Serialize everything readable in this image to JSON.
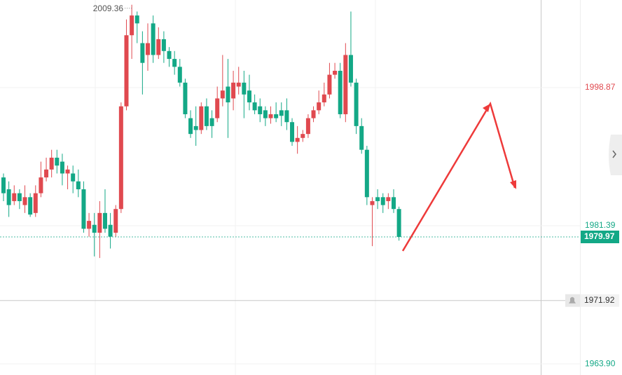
{
  "chart_data": {
    "type": "candlestick",
    "open": [
      1987.5,
      1986,
      1984.5,
      1985.5,
      1984,
      1985,
      1983,
      1985.5,
      1987.5,
      1988.5,
      1990,
      1989.5,
      1988,
      1988,
      1987,
      1986,
      1981,
      1981.5,
      1980.5,
      1983,
      1981.5,
      1980.5,
      1983.5,
      1996.5,
      2005.5,
      2008,
      2004.5,
      2003,
      2007,
      2003,
      2005,
      2003.5,
      2002.5,
      2001.5,
      1999.5,
      1995,
      1994,
      1993.5,
      1996.5,
      1995,
      1995,
      1997.5,
      1999,
      1997.5,
      1999,
      1999.5,
      1998.5,
      1997,
      1996.5,
      1996,
      1995,
      1995.5,
      1996,
      1996,
      1994.5,
      1992,
      1992.5,
      1993,
      1995,
      1996,
      1997,
      1998,
      2000.5,
      2001,
      1995.5,
      2003,
      1999.5,
      1994,
      1991,
      1984,
      1985,
      1985,
      1984.5,
      1985,
      1983.5
    ],
    "high": [
      1988,
      1987,
      1986.5,
      1986,
      1986.5,
      1985.5,
      1986.5,
      1989.5,
      1990,
      1991,
      1991,
      1990.5,
      1989,
      1989,
      1988.5,
      1987,
      1983,
      1983,
      1984.5,
      1986,
      1983,
      1984,
      1997,
      2007.5,
      2009.36,
      2008.5,
      2006,
      2007,
      2008,
      2006.5,
      2006,
      2004,
      2003.5,
      2002.5,
      2000,
      1996,
      1996.5,
      1997,
      1997.5,
      1996,
      1999,
      2003,
      2002.5,
      2001,
      2001.5,
      2001,
      2000.5,
      1998,
      1997.5,
      1996.5,
      1996.5,
      1997,
      1997,
      1997.5,
      1995,
      1994,
      1993.5,
      1995.5,
      1996.5,
      1998.5,
      1999.5,
      2002,
      2002,
      2002,
      2004.5,
      2008.5,
      2000,
      1995,
      1991.5,
      1985,
      1986,
      1985.5,
      1985.5,
      1986,
      1983.8
    ],
    "low": [
      1984.5,
      1982.5,
      1984,
      1983.5,
      1983,
      1982.5,
      1982.5,
      1985,
      1987,
      1987.5,
      1988,
      1986.5,
      1986,
      1985.5,
      1985,
      1980.5,
      1980,
      1977.5,
      1977.3,
      1980.5,
      1978.5,
      1980,
      1983,
      1996,
      2002.5,
      2004.5,
      1998,
      2001,
      2002,
      2002.5,
      2002,
      2001.5,
      2000.5,
      1999,
      1995,
      1992.5,
      1991.5,
      1993,
      1993.5,
      1992.5,
      1994.5,
      1996.5,
      1992.5,
      1996,
      1998,
      1995,
      1996,
      1995.5,
      1994.5,
      1994,
      1994.3,
      1994.5,
      1994,
      1993.5,
      1991.5,
      1990.5,
      1992,
      1992.5,
      1994.5,
      1995.5,
      1996.5,
      1997.5,
      2000,
      1995,
      1994.5,
      1999,
      1993,
      1990.5,
      1984,
      1978.8,
      1983.5,
      1983,
      1983.5,
      1983,
      1979.5
    ],
    "close": [
      1985.5,
      1984,
      1985.5,
      1984.5,
      1985,
      1982.8,
      1985.5,
      1987.5,
      1988.5,
      1990,
      1989,
      1988,
      1988.5,
      1987,
      1986,
      1981,
      1982,
      1980.5,
      1983,
      1981,
      1980,
      1983.5,
      1996.5,
      2005.5,
      2008,
      2007,
      2002,
      2004.5,
      2003,
      2005,
      2003.5,
      2002.5,
      2001.5,
      1999.5,
      1995.5,
      1993,
      1993.5,
      1996.5,
      1994,
      1994,
      1997.5,
      1998.5,
      1997,
      1999.5,
      1999.5,
      1998,
      1997,
      1996,
      1995.5,
      1995,
      1995.5,
      1995,
      1995.3,
      1994.5,
      1992,
      1992.5,
      1993,
      1995,
      1996,
      1997,
      1998,
      2000.5,
      2001,
      1995.5,
      2003,
      1999.5,
      1994,
      1991,
      1985,
      1984.5,
      1984.5,
      1984,
      1985,
      1983.5,
      1979.97
    ],
    "up_color": "#e0494f",
    "down_color": "#13a886",
    "ylim": [
      1962.49,
      2009.96
    ],
    "yticks": [
      1998.87,
      1981.39,
      {
        "value": 1963.9,
        "label": "1963.90"
      }
    ],
    "ytick_colors": [
      "#e0494f",
      "#13a886",
      "#13a886"
    ],
    "grid": true,
    "max_high": 2009.36,
    "last_price": 1979.97,
    "crosshair_price": 1971.92
  }
}
